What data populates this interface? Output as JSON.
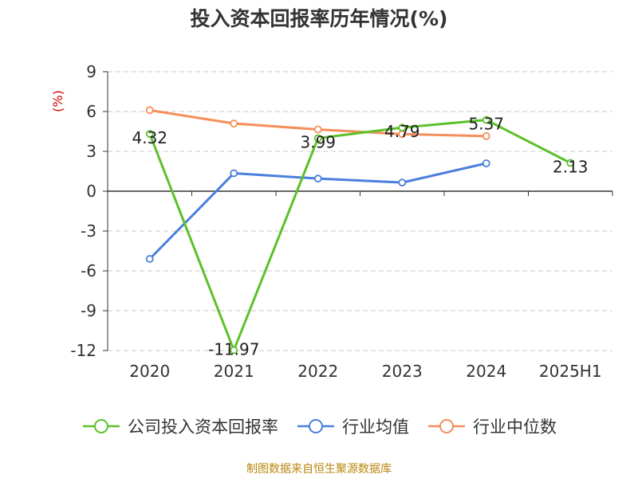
{
  "chart_data": {
    "type": "line",
    "title": "投入资本回报率历年情况(%)",
    "ylabel": "(%)",
    "categories": [
      "2020",
      "2021",
      "2022",
      "2023",
      "2024",
      "2025H1"
    ],
    "ylim": [
      -12,
      9
    ],
    "yticks": [
      9,
      6,
      3,
      0,
      -3,
      -6,
      -9,
      -12
    ],
    "grid": true,
    "legend_position": "bottom",
    "series": [
      {
        "name": "公司投入资本回报率",
        "color": "#5cc12a",
        "values": [
          4.32,
          -11.97,
          3.99,
          4.79,
          5.37,
          2.13
        ],
        "labels": [
          "4.32",
          "-11.97",
          "3.99",
          "4.79",
          "5.37",
          "2.13"
        ]
      },
      {
        "name": "行业均值",
        "color": "#4a7fdc",
        "values": [
          -5.1,
          1.35,
          0.95,
          0.65,
          2.1,
          null
        ]
      },
      {
        "name": "行业中位数",
        "color": "#f58e5a",
        "values": [
          6.1,
          5.1,
          4.65,
          4.3,
          4.15,
          null
        ]
      }
    ]
  },
  "source": "制图数据来自恒生聚源数据库"
}
